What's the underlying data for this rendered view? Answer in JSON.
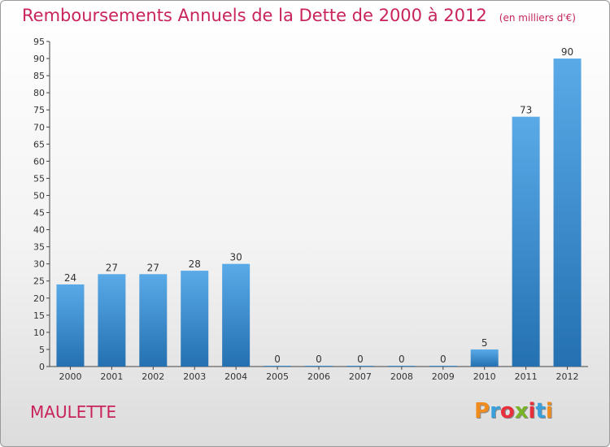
{
  "header": {
    "title": "Remboursements Annuels de la Dette de 2000 à 2012",
    "subtitle": "(en milliers d'€)"
  },
  "footer": {
    "commune": "MAULETTE",
    "logo": [
      "P",
      "r",
      "o",
      "x",
      "i",
      "t",
      "i"
    ]
  },
  "colors": {
    "title": "#c8245a",
    "bar_top": "#5aaae8",
    "bar_bottom": "#2470b0",
    "logo": [
      "#f08c1e",
      "#3aa0dc",
      "#e8303c",
      "#78b428",
      "#e8303c",
      "#3aa0dc",
      "#f08c1e"
    ]
  },
  "chart_data": {
    "type": "bar",
    "categories": [
      "2000",
      "2001",
      "2002",
      "2003",
      "2004",
      "2005",
      "2006",
      "2007",
      "2008",
      "2009",
      "2010",
      "2011",
      "2012"
    ],
    "values": [
      24,
      27,
      27,
      28,
      30,
      0,
      0,
      0,
      0,
      0,
      5,
      73,
      90
    ],
    "ylim": [
      0,
      95
    ],
    "yticks": [
      0,
      5,
      10,
      15,
      20,
      25,
      30,
      35,
      40,
      45,
      50,
      55,
      60,
      65,
      70,
      75,
      80,
      85,
      90,
      95
    ],
    "grid": false,
    "data_labels": true
  }
}
